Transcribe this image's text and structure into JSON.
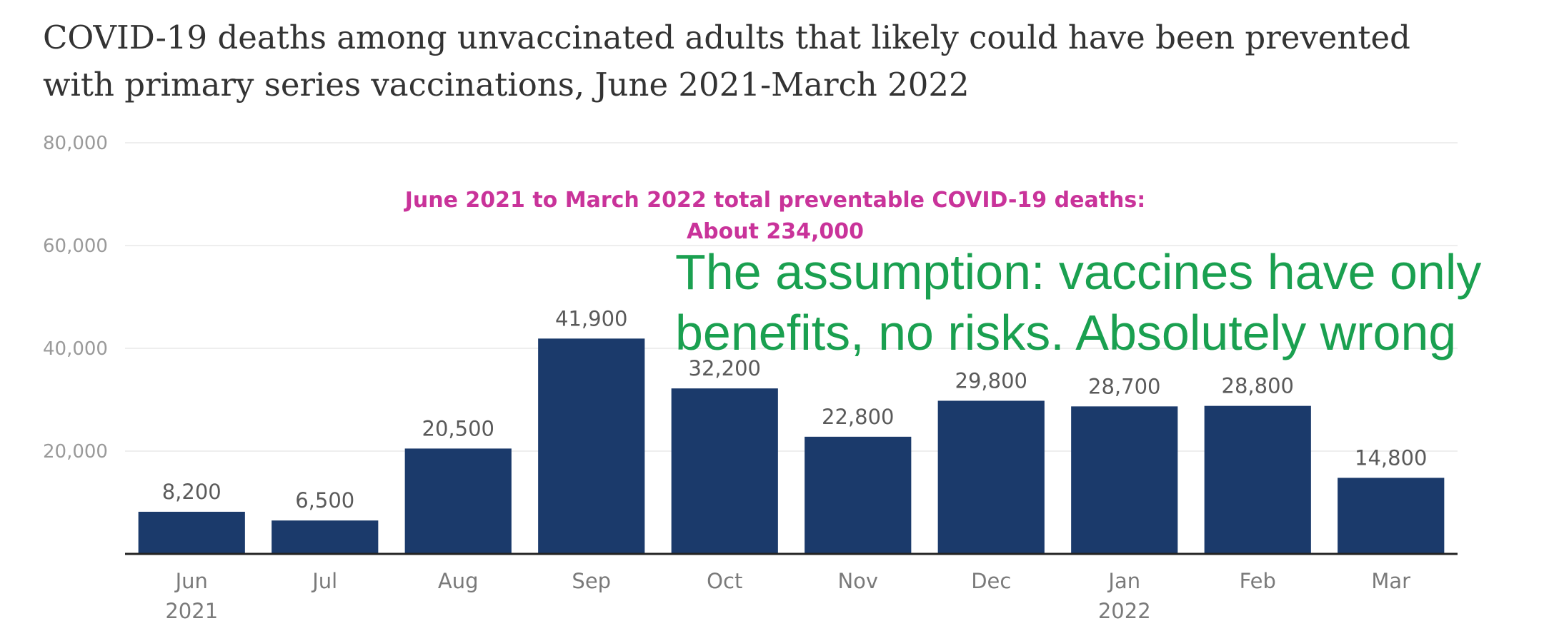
{
  "chart_data": {
    "type": "bar",
    "title_lines": [
      "COVID-19 deaths among unvaccinated adults that likely could have been prevented",
      "with primary series vaccinations, June 2021-March 2022"
    ],
    "categories": [
      "Jun",
      "Jul",
      "Aug",
      "Sep",
      "Oct",
      "Nov",
      "Dec",
      "Jan",
      "Feb",
      "Mar"
    ],
    "year_labels": [
      "2021",
      "",
      "",
      "",
      "",
      "",
      "",
      "2022",
      "",
      ""
    ],
    "values": [
      8200,
      6500,
      20500,
      41900,
      32200,
      22800,
      29800,
      28700,
      28800,
      14800
    ],
    "value_labels": [
      "8,200",
      "6,500",
      "20,500",
      "41,900",
      "32,200",
      "22,800",
      "29,800",
      "28,700",
      "28,800",
      "14,800"
    ],
    "y_ticks": [
      20000,
      40000,
      60000,
      80000
    ],
    "y_tick_labels": [
      "20,000",
      "40,000",
      "60,000",
      "80,000"
    ],
    "ylim": [
      0,
      80000
    ],
    "grid": true,
    "annotation_lines": [
      "June 2021 to March 2022 total preventable COVID-19 deaths:",
      "About 234,000"
    ],
    "colors": {
      "bar": "#1b3a6b",
      "annotation": "#c9339a",
      "overlay": "#1aa050"
    }
  },
  "overlay_text_lines": [
    "The assumption: vaccines have only",
    "benefits, no risks.  Absolutely wrong"
  ]
}
